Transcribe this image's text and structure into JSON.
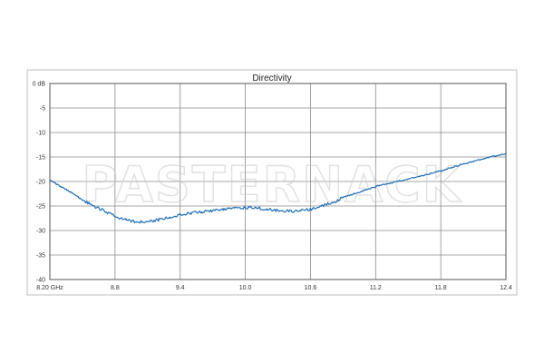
{
  "chart_data": {
    "type": "line",
    "title": "Directivity",
    "watermark": "PASTERNACK",
    "xlabel": "",
    "ylabel": "",
    "xlim": [
      8.2,
      12.4
    ],
    "ylim": [
      -40,
      0
    ],
    "x_ticks": [
      {
        "value": 8.2,
        "label": "8.20 GHz"
      },
      {
        "value": 8.8,
        "label": "8.8"
      },
      {
        "value": 9.4,
        "label": "9.4"
      },
      {
        "value": 10.0,
        "label": "10.0"
      },
      {
        "value": 10.6,
        "label": "10.6"
      },
      {
        "value": 11.2,
        "label": "11.2"
      },
      {
        "value": 11.8,
        "label": "11.8"
      },
      {
        "value": 12.4,
        "label": "12.4"
      }
    ],
    "y_ticks": [
      {
        "value": 0,
        "label": "0 dB"
      },
      {
        "value": -5,
        "label": "-5"
      },
      {
        "value": -10,
        "label": "-10"
      },
      {
        "value": -15,
        "label": "-15"
      },
      {
        "value": -20,
        "label": "-20"
      },
      {
        "value": -25,
        "label": "-25"
      },
      {
        "value": -30,
        "label": "-30"
      },
      {
        "value": -35,
        "label": "-35"
      },
      {
        "value": -40,
        "label": "-40"
      }
    ],
    "grid": true,
    "line_color": "#1f6fb5",
    "series": [
      {
        "x": [
          8.2,
          8.3,
          8.4,
          8.5,
          8.6,
          8.7,
          8.8,
          8.9,
          9.0,
          9.1,
          9.2,
          9.3,
          9.4,
          9.5,
          9.6,
          9.7,
          9.8,
          9.9,
          10.0,
          10.1,
          10.2,
          10.3,
          10.4,
          10.5,
          10.6,
          10.7,
          10.8,
          10.9,
          11.0,
          11.1,
          11.2,
          11.3,
          11.4,
          11.5,
          11.6,
          11.7,
          11.8,
          11.9,
          12.0,
          12.1,
          12.2,
          12.3,
          12.4
        ],
        "y": [
          -19.8,
          -21.0,
          -22.3,
          -23.8,
          -25.0,
          -26.0,
          -27.1,
          -27.8,
          -28.3,
          -28.2,
          -27.8,
          -27.3,
          -26.8,
          -26.4,
          -26.2,
          -25.9,
          -25.6,
          -25.4,
          -25.3,
          -25.4,
          -25.6,
          -25.9,
          -26.1,
          -26.0,
          -25.7,
          -25.0,
          -24.3,
          -23.3,
          -22.5,
          -21.8,
          -21.0,
          -20.5,
          -20.0,
          -19.5,
          -19.0,
          -18.4,
          -17.8,
          -17.1,
          -16.5,
          -15.9,
          -15.3,
          -14.8,
          -14.3
        ]
      }
    ]
  }
}
